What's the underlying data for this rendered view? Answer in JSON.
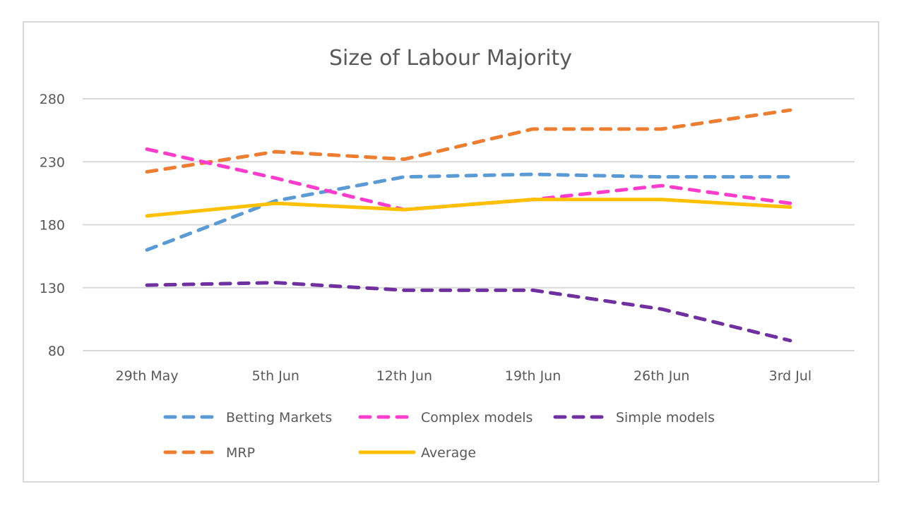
{
  "chart_data": {
    "type": "line",
    "title": "Size of Labour Majority",
    "xlabel": "",
    "ylabel": "",
    "categories": [
      "29th May",
      "5th Jun",
      "12th Jun",
      "19th Jun",
      "26th Jun",
      "3rd Jul"
    ],
    "ylim": [
      80,
      280
    ],
    "yticks": [
      80,
      130,
      180,
      230,
      280
    ],
    "grid": true,
    "legend_position": "bottom",
    "series": [
      {
        "name": "Betting Markets",
        "color": "#5B9BD5",
        "style": "dashed",
        "values": [
          160,
          199,
          218,
          220,
          218,
          218
        ]
      },
      {
        "name": "Complex models",
        "color": "#FF3DCC",
        "style": "dashed",
        "values": [
          240,
          217,
          192,
          200,
          211,
          197
        ]
      },
      {
        "name": "Simple models",
        "color": "#7030A0",
        "style": "dashed",
        "values": [
          132,
          134,
          128,
          128,
          113,
          88
        ]
      },
      {
        "name": "MRP",
        "color": "#ED7D31",
        "style": "dashed",
        "values": [
          222,
          238,
          232,
          256,
          256,
          271
        ]
      },
      {
        "name": "Average",
        "color": "#FFC000",
        "style": "solid",
        "values": [
          187,
          197,
          192,
          200,
          200,
          194
        ]
      }
    ]
  }
}
